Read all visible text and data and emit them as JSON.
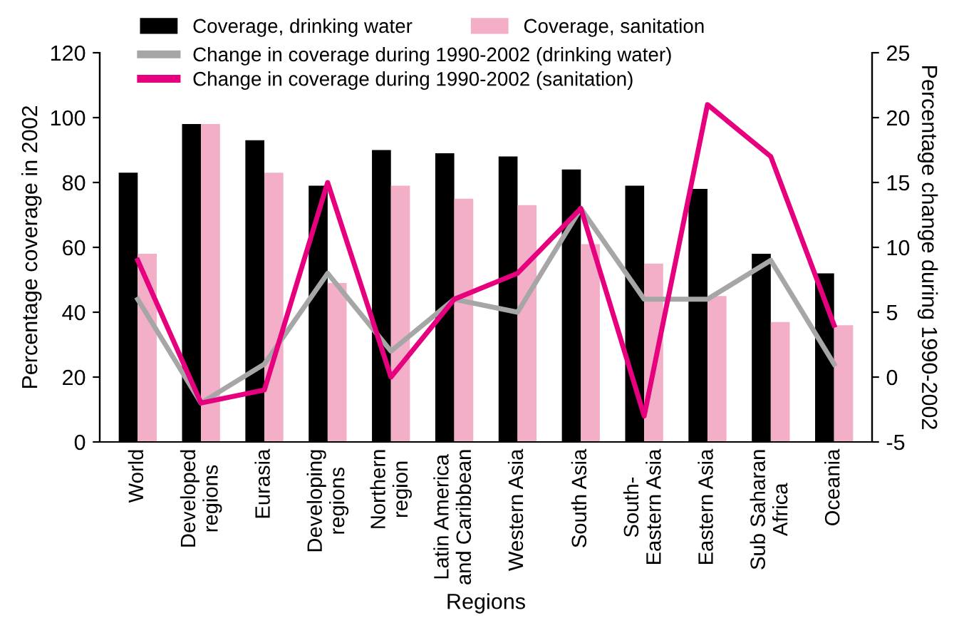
{
  "chart_data": {
    "type": "bar",
    "categories": [
      "World",
      "Developed\nregions",
      "Eurasia",
      "Developing\nregions",
      "Northern\nregion",
      "Latin America\nand Caribbean",
      "Western Asia",
      "South Asia",
      "South-\nEastern Asia",
      "Eastern Asia",
      "Sub Saharan\nAfrica",
      "Oceania"
    ],
    "series": [
      {
        "name": "Coverage, drinking water",
        "color": "#000000",
        "values": [
          83,
          98,
          93,
          79,
          90,
          89,
          88,
          84,
          79,
          78,
          58,
          52
        ]
      },
      {
        "name": "Coverage, sanitation",
        "color": "#f4afc8",
        "values": [
          58,
          98,
          83,
          49,
          79,
          75,
          73,
          61,
          55,
          45,
          37,
          36
        ]
      },
      {
        "name": "Change in coverage during 1990-2002 (drinking water)",
        "type": "line",
        "axis": "y2",
        "color": "#a6a6a6",
        "values": [
          6,
          -2,
          1,
          8,
          2,
          6,
          5,
          13,
          6,
          6,
          9,
          1
        ]
      },
      {
        "name": "Change in coverage during 1990-2002 (sanitation)",
        "type": "line",
        "axis": "y2",
        "color": "#e6007e",
        "values": [
          9,
          -2,
          -1,
          15,
          0,
          6,
          8,
          13,
          -3,
          21,
          17,
          4
        ]
      }
    ],
    "xlabel": "Regions",
    "ylabel": "Percentage coverage in 2002",
    "y2label": "Percentage change during 1990-2002",
    "ylim": [
      0,
      120
    ],
    "yticks": [
      0,
      20,
      40,
      60,
      80,
      100,
      120
    ],
    "y2lim": [
      -5,
      25
    ],
    "y2ticks": [
      -5,
      0,
      5,
      10,
      15,
      20,
      25
    ],
    "grid": false,
    "legend": "top",
    "marker": "none",
    "line_style": "solid"
  }
}
